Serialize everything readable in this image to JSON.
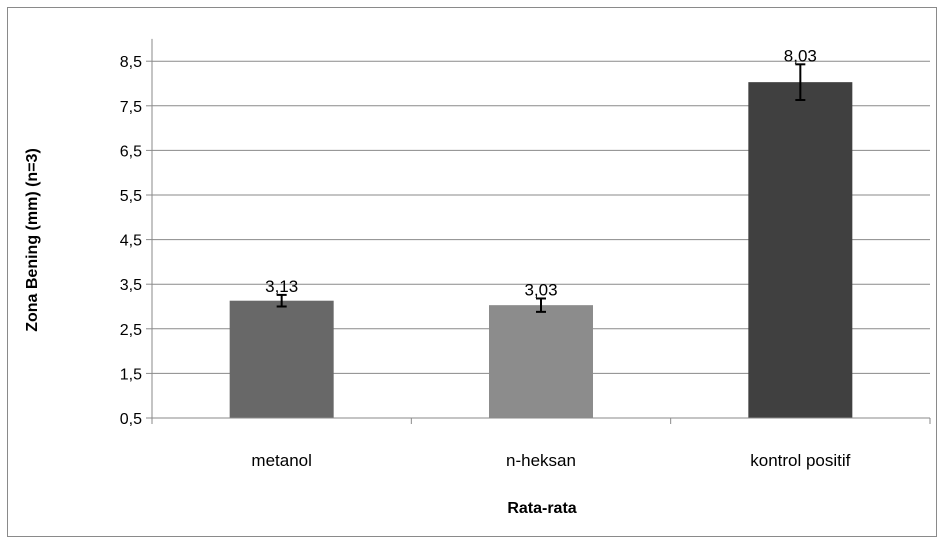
{
  "chart_data": {
    "type": "bar",
    "title": "",
    "xlabel": "Rata-rata",
    "ylabel": "Zona Bening (mm) (n=3)",
    "ylim": [
      0.5,
      9.0
    ],
    "yticks": [
      "0,5",
      "1,5",
      "2,5",
      "3,5",
      "4,5",
      "5,5",
      "6,5",
      "7,5",
      "8,5"
    ],
    "ytick_values": [
      0.5,
      1.5,
      2.5,
      3.5,
      4.5,
      5.5,
      6.5,
      7.5,
      8.5
    ],
    "grid": true,
    "legend": "none",
    "categories": [
      "metanol",
      "n-heksan",
      "kontrol positif"
    ],
    "values": [
      3.13,
      3.03,
      8.03
    ],
    "value_labels": [
      "3,13",
      "3,03",
      "8,03"
    ],
    "error": [
      0.13,
      0.15,
      0.4
    ],
    "colors": [
      "#686868",
      "#8c8c8c",
      "#404040"
    ]
  }
}
